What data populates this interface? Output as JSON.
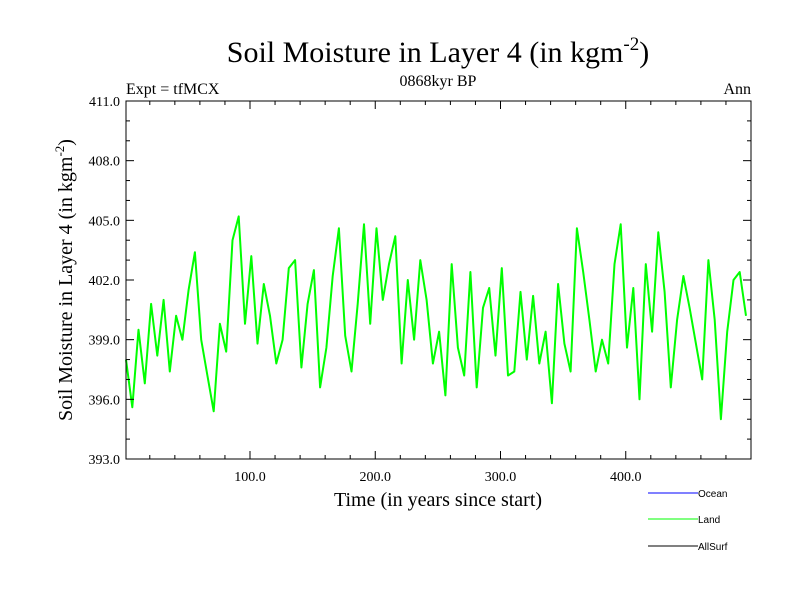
{
  "chart_data": {
    "type": "line",
    "title_main": "Soil Moisture in Layer 4 (in kgm",
    "title_sup": "-2",
    "title_close": ")",
    "subtitle_left": "Expt = tfMCX",
    "subtitle_center": "0868kyr BP",
    "subtitle_right": "Ann",
    "xlabel": "Time (in years since start)",
    "ylabel_main": "Soil Moisture in Layer 4 (in kgm",
    "ylabel_sup": "-2",
    "ylabel_close": ")",
    "xlim": [
      1,
      500
    ],
    "ylim": [
      393.0,
      411.0
    ],
    "xticks": [
      100,
      200,
      300,
      400
    ],
    "xtick_labels": [
      "100.0",
      "200.0",
      "300.0",
      "400.0"
    ],
    "yticks": [
      393,
      396,
      399,
      402,
      405,
      408,
      411
    ],
    "ytick_labels": [
      "393.0",
      "396.0",
      "399.0",
      "402.0",
      "405.0",
      "408.0",
      "411.0"
    ],
    "legend": [
      {
        "name": "Ocean",
        "color": "#0000ff"
      },
      {
        "name": "Land",
        "color": "#00ff00"
      },
      {
        "name": "AllSurf",
        "color": "#000000"
      }
    ],
    "series": [
      {
        "name": "Land",
        "color": "#00ff00",
        "x_start": 1,
        "x_step": 5,
        "values": [
          398.0,
          395.6,
          399.5,
          396.8,
          400.8,
          398.2,
          401.0,
          397.4,
          400.2,
          399.0,
          401.5,
          403.4,
          399.0,
          397.2,
          395.4,
          399.8,
          398.4,
          404.0,
          405.2,
          399.8,
          403.2,
          398.8,
          401.8,
          400.2,
          397.8,
          399.0,
          402.6,
          403.0,
          397.6,
          400.8,
          402.5,
          396.6,
          398.6,
          402.2,
          404.6,
          399.2,
          397.4,
          400.8,
          404.8,
          399.8,
          404.6,
          401.0,
          402.8,
          404.2,
          397.8,
          402.0,
          399.0,
          403.0,
          401.0,
          397.8,
          399.4,
          396.2,
          402.8,
          398.6,
          397.2,
          402.4,
          396.6,
          400.6,
          401.6,
          398.2,
          402.6,
          397.2,
          397.4,
          401.4,
          398.0,
          401.2,
          397.8,
          399.4,
          395.8,
          401.8,
          398.8,
          397.4,
          404.6,
          402.4,
          400.0,
          397.4,
          399.0,
          397.8,
          402.8,
          404.8,
          398.6,
          401.6,
          396.0,
          402.8,
          399.4,
          404.4,
          401.4,
          396.6,
          400.0,
          402.2,
          400.6,
          398.8,
          397.0,
          403.0,
          400.0,
          395.0,
          399.4,
          402.0,
          402.4,
          400.2
        ]
      }
    ]
  }
}
